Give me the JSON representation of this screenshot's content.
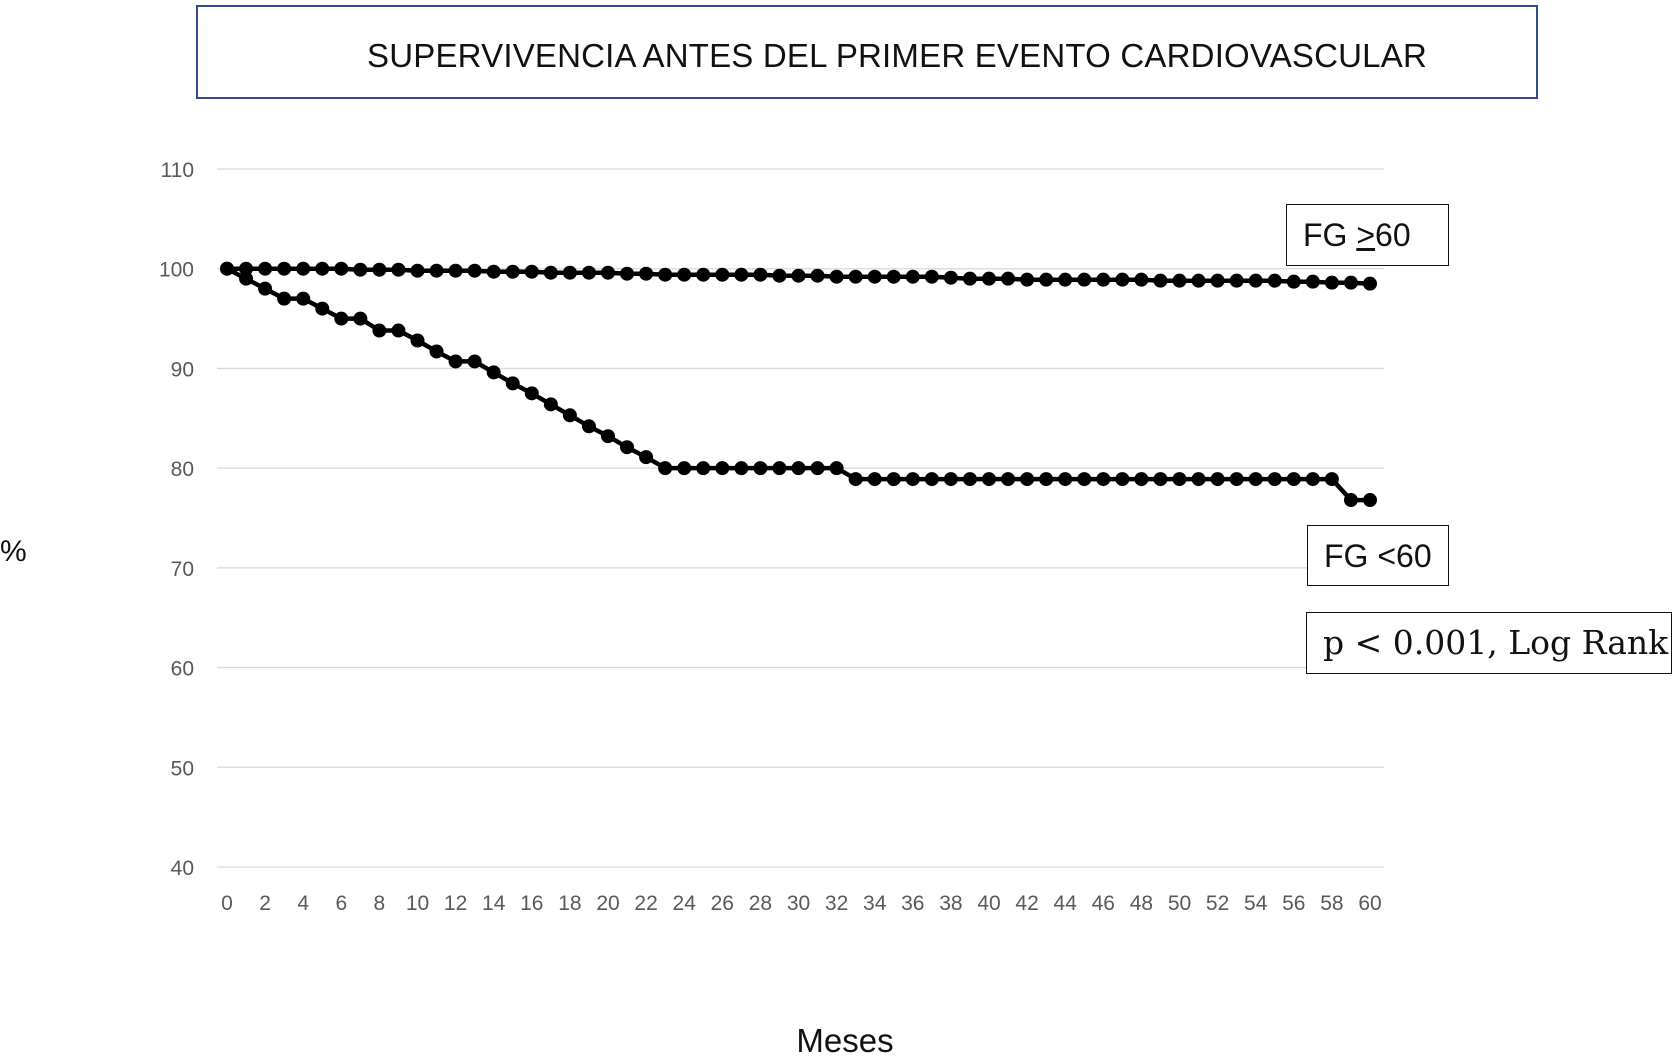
{
  "chart_data": {
    "type": "line",
    "title": "SUPERVIVENCIA ANTES DEL PRIMER EVENTO CARDIOVASCULAR",
    "xlabel": "Meses",
    "ylabel": "%",
    "xlim": [
      0,
      60
    ],
    "ylim": [
      40,
      110
    ],
    "x_ticks": [
      0,
      2,
      4,
      6,
      8,
      10,
      12,
      14,
      16,
      18,
      20,
      22,
      24,
      26,
      28,
      30,
      32,
      34,
      36,
      38,
      40,
      42,
      44,
      46,
      48,
      50,
      52,
      54,
      56,
      58,
      60
    ],
    "y_ticks": [
      40,
      50,
      60,
      70,
      80,
      90,
      100,
      110
    ],
    "grid": "horizontal",
    "x": [
      0,
      1,
      2,
      3,
      4,
      5,
      6,
      7,
      8,
      9,
      10,
      11,
      12,
      13,
      14,
      15,
      16,
      17,
      18,
      19,
      20,
      21,
      22,
      23,
      24,
      25,
      26,
      27,
      28,
      29,
      30,
      31,
      32,
      33,
      34,
      35,
      36,
      37,
      38,
      39,
      40,
      41,
      42,
      43,
      44,
      45,
      46,
      47,
      48,
      49,
      50,
      51,
      52,
      53,
      54,
      55,
      56,
      57,
      58,
      59,
      60
    ],
    "series": [
      {
        "name": "FG ≥60",
        "label_prefix": "FG ",
        "label_underlined": ">",
        "label_suffix": "60",
        "values": [
          100,
          100,
          100,
          100,
          100,
          100,
          100,
          99.9,
          99.9,
          99.9,
          99.8,
          99.8,
          99.8,
          99.8,
          99.7,
          99.7,
          99.7,
          99.6,
          99.6,
          99.6,
          99.6,
          99.5,
          99.5,
          99.4,
          99.4,
          99.4,
          99.4,
          99.4,
          99.4,
          99.3,
          99.3,
          99.3,
          99.2,
          99.2,
          99.2,
          99.2,
          99.2,
          99.2,
          99.1,
          99.0,
          99.0,
          99.0,
          98.9,
          98.9,
          98.9,
          98.9,
          98.9,
          98.9,
          98.9,
          98.8,
          98.8,
          98.8,
          98.8,
          98.8,
          98.8,
          98.8,
          98.7,
          98.7,
          98.6,
          98.6,
          98.5
        ]
      },
      {
        "name": "FG <60",
        "values": [
          100,
          99,
          98,
          97,
          97,
          96,
          95,
          95,
          93.8,
          93.8,
          92.8,
          91.7,
          90.7,
          90.7,
          89.6,
          88.5,
          87.5,
          86.4,
          85.3,
          84.2,
          83.2,
          82.1,
          81.1,
          80,
          80,
          80,
          80,
          80,
          80,
          80,
          80,
          80,
          80,
          78.9,
          78.9,
          78.9,
          78.9,
          78.9,
          78.9,
          78.9,
          78.9,
          78.9,
          78.9,
          78.9,
          78.9,
          78.9,
          78.9,
          78.9,
          78.9,
          78.9,
          78.9,
          78.9,
          78.9,
          78.9,
          78.9,
          78.9,
          78.9,
          78.9,
          78.9,
          76.8,
          76.8
        ]
      }
    ],
    "annotations": [
      "p < 0.001, Log Rank"
    ]
  },
  "colors": {
    "series": "#000000",
    "grid": "#d9d9d9",
    "ticks": "#595959",
    "title_border": "#2e4b8f"
  }
}
